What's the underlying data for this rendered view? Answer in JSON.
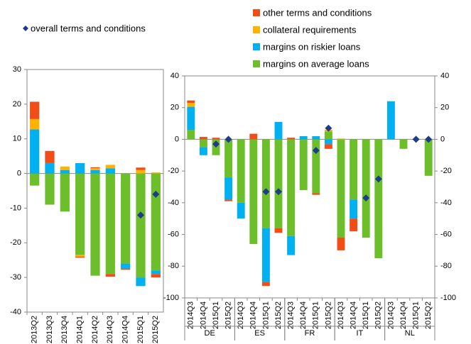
{
  "chart_data": [
    {
      "type": "bar",
      "stacked": true,
      "categories": [
        "2013Q2",
        "2013Q3",
        "2013Q4",
        "2014Q1",
        "2014Q2",
        "2014Q3",
        "2014Q4",
        "2015Q1",
        "2015Q2"
      ],
      "ylim": [
        -40,
        30
      ],
      "yticks": [
        -40,
        -30,
        -20,
        -10,
        0,
        10,
        20,
        30
      ],
      "series": [
        {
          "color": "#6cbf2a",
          "values": [
            -3.5,
            -9,
            -11,
            -23.5,
            -29.5,
            -29,
            -26,
            -30,
            -28
          ]
        },
        {
          "color": "#00b0f0",
          "values": [
            12.7,
            3,
            1,
            3,
            1,
            1.5,
            -1.5,
            -2.5,
            -1
          ]
        },
        {
          "color": "#ffb300",
          "values": [
            3,
            0,
            1,
            -0.5,
            0.5,
            1,
            0,
            1,
            0.3
          ]
        },
        {
          "color": "#f04e16",
          "values": [
            5,
            3.5,
            0,
            -0.3,
            0.3,
            -0.8,
            -0.3,
            0.7,
            -1
          ]
        }
      ],
      "overall": {
        "name": "overall terms and conditions",
        "color": "#1f3c88",
        "values": [
          null,
          null,
          null,
          null,
          null,
          null,
          null,
          -12,
          -6
        ]
      }
    },
    {
      "type": "bar",
      "stacked": true,
      "categories": [
        "2014Q3",
        "2014Q4",
        "2015Q1",
        "2015Q2",
        "2014Q3",
        "2014Q4",
        "2015Q1",
        "2015Q2",
        "2014Q3",
        "2014Q4",
        "2015Q1",
        "2015Q2",
        "2014Q3",
        "2014Q4",
        "2015Q1",
        "2015Q2",
        "2014Q3",
        "2014Q4",
        "2015Q1",
        "2015Q2"
      ],
      "groups": [
        "DE",
        "ES",
        "FR",
        "IT",
        "NL"
      ],
      "ylim": [
        -100,
        40
      ],
      "yticks": [
        -100,
        -80,
        -60,
        -40,
        -20,
        0,
        20,
        40
      ],
      "series": [
        {
          "name": "margins on average loans",
          "color": "#6cbf2a",
          "values": [
            6,
            -5,
            -10,
            -24,
            -40,
            -66,
            -56,
            -56,
            -61,
            -32,
            -34,
            5,
            -62,
            -38,
            -62,
            -75,
            0,
            -6,
            0,
            -23
          ]
        },
        {
          "name": "margins on riskier loans",
          "color": "#00b0f0",
          "values": [
            14.5,
            -5,
            0,
            -14,
            -10,
            0,
            -34,
            11,
            -12,
            2,
            2,
            -3,
            0,
            -12,
            0,
            0,
            24,
            0,
            0,
            0
          ]
        },
        {
          "name": "collateral requirements",
          "color": "#ffb300",
          "values": [
            2.5,
            0,
            0,
            0,
            0,
            0,
            0,
            0,
            0,
            0,
            0,
            1,
            0.5,
            0,
            0,
            0,
            0,
            0,
            0,
            0
          ]
        },
        {
          "name": "other terms and conditions",
          "color": "#f04e16",
          "values": [
            1.5,
            1.5,
            1,
            -1,
            0,
            3.5,
            -2.5,
            -3,
            1,
            0,
            -1,
            -3,
            -8,
            -8,
            0,
            0,
            0,
            0,
            0,
            0
          ]
        }
      ],
      "overall": {
        "color": "#1f3c88",
        "values": [
          null,
          null,
          -3,
          0,
          null,
          null,
          -33,
          -33,
          null,
          null,
          -7,
          7,
          null,
          null,
          -37,
          -25,
          null,
          null,
          0,
          0
        ]
      }
    }
  ]
}
